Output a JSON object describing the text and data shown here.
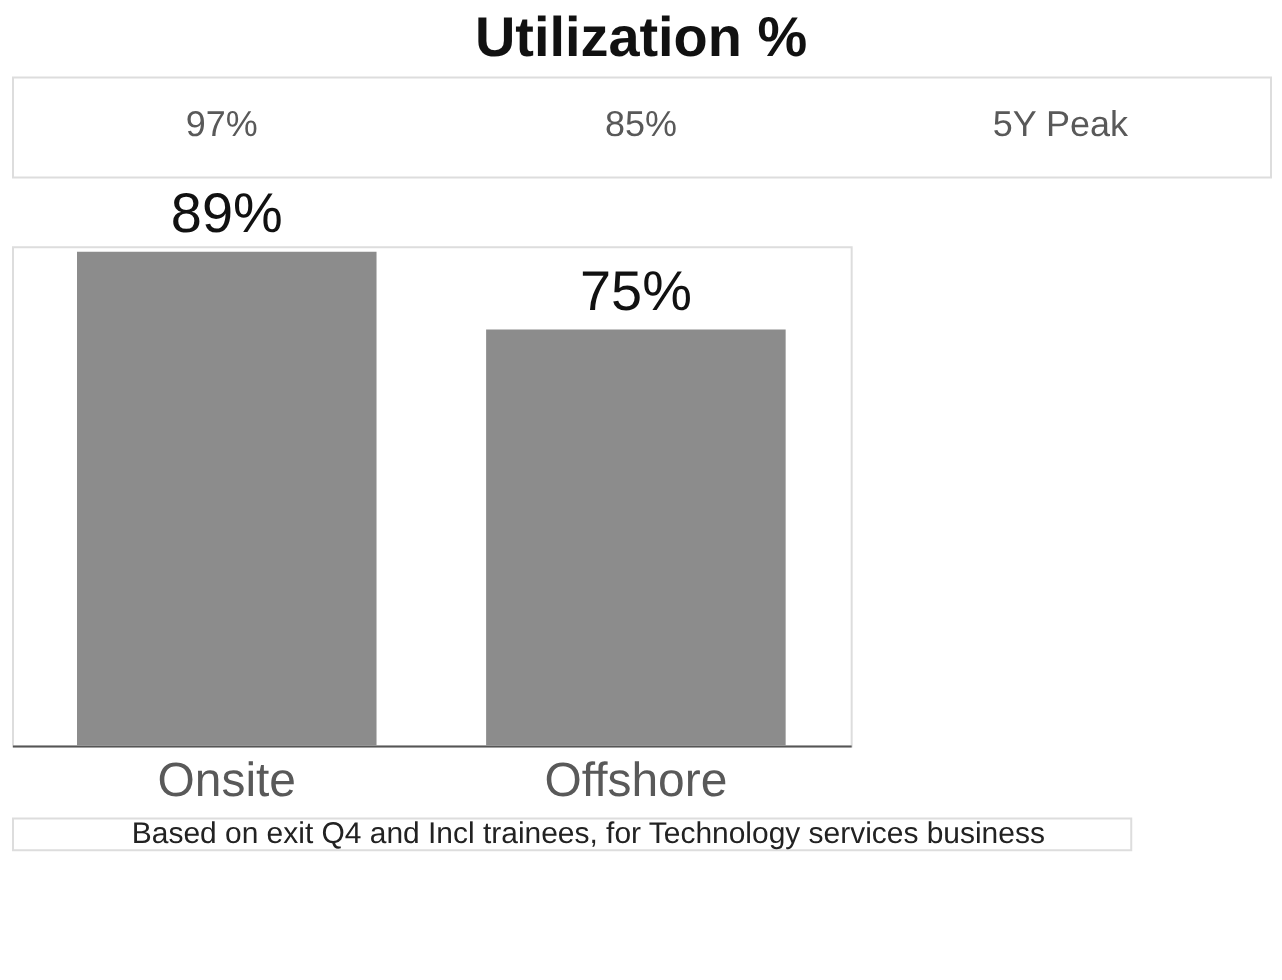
{
  "chart_data": {
    "type": "bar",
    "title": "Utilization %",
    "categories": [
      "Onsite",
      "Offshore"
    ],
    "values": [
      89,
      75
    ],
    "color": "#8c8c8c",
    "value_labels": [
      "89%",
      "75%"
    ],
    "annotations": [
      "97%",
      "85%",
      "5Y Peak",
      "Based on exit Q4 and Incl trainees, for Technology services business"
    ]
  }
}
